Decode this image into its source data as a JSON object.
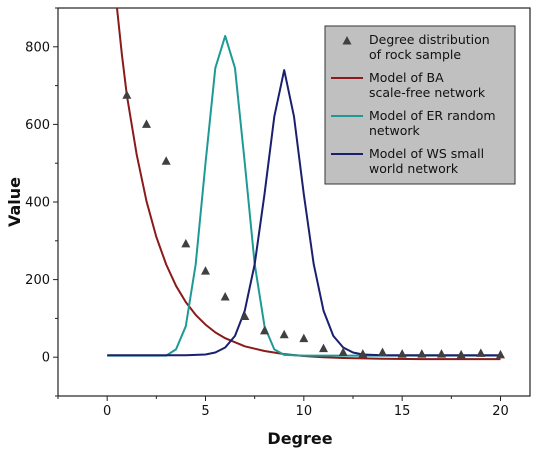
{
  "chart_data": {
    "type": "line",
    "xlabel": "Degree",
    "ylabel": "Value",
    "xlim": [
      -2.5,
      21.5
    ],
    "ylim": [
      -100,
      900
    ],
    "xticks": [
      0,
      5,
      10,
      15,
      20
    ],
    "yticks": [
      0,
      200,
      400,
      600,
      800
    ],
    "grid": false,
    "legend_position": "top-right",
    "legend_background": "#c0c0c0",
    "scatter": {
      "name": "Degree distribution of rock sample",
      "color": "#404040",
      "marker": "triangle",
      "x": [
        1,
        2,
        3,
        4,
        5,
        6,
        7,
        8,
        9,
        10,
        11,
        12,
        13,
        14,
        15,
        16,
        17,
        18,
        19,
        20
      ],
      "y": [
        675,
        600,
        505,
        292,
        222,
        155,
        105,
        68,
        58,
        48,
        22,
        12,
        8,
        12,
        8,
        8,
        8,
        6,
        10,
        6
      ]
    },
    "series": [
      {
        "name": "Model of BA scale-free network",
        "color": "#8b1a1a",
        "x": [
          0.5,
          0.75,
          1,
          1.5,
          2,
          2.5,
          3,
          3.5,
          4,
          4.5,
          5,
          5.5,
          6,
          7,
          8,
          9,
          10,
          11,
          12,
          14,
          16,
          18,
          20
        ],
        "y": [
          900,
          780,
          676,
          522,
          402,
          310,
          239,
          184,
          142,
          109,
          84,
          64,
          49,
          28,
          16,
          8,
          3,
          0,
          -2,
          -4,
          -5,
          -5,
          -5
        ]
      },
      {
        "name": "Model of ER random network",
        "color": "#1e9a96",
        "x": [
          0,
          2,
          3,
          3.5,
          4,
          4.5,
          5,
          5.5,
          6,
          6.5,
          7,
          7.5,
          8,
          8.5,
          9,
          10,
          12,
          14,
          16,
          18,
          20
        ],
        "y": [
          4,
          4,
          4,
          20,
          80,
          240,
          500,
          745,
          828,
          745,
          500,
          240,
          80,
          20,
          6,
          4,
          4,
          4,
          4,
          4,
          4
        ]
      },
      {
        "name": "Model of WS small world network",
        "color": "#1a1f6e",
        "x": [
          0,
          4,
          5,
          5.5,
          6,
          6.5,
          7,
          7.5,
          8,
          8.5,
          9,
          9.5,
          10,
          10.5,
          11,
          11.5,
          12,
          12.5,
          13,
          14,
          16,
          18,
          20
        ],
        "y": [
          5,
          5,
          7,
          12,
          25,
          55,
          120,
          240,
          420,
          620,
          740,
          620,
          420,
          240,
          120,
          55,
          25,
          12,
          7,
          5,
          5,
          5,
          5
        ]
      }
    ]
  }
}
